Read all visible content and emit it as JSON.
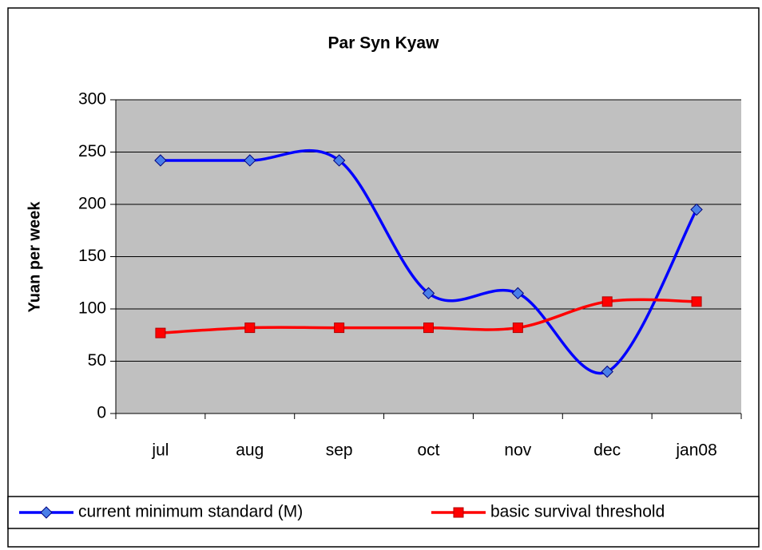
{
  "chart_data": {
    "type": "line",
    "title": "Par Syn Kyaw",
    "y_label": "Yuan per week",
    "categories": [
      "jul",
      "aug",
      "sep",
      "oct",
      "nov",
      "dec",
      "jan08"
    ],
    "series": [
      {
        "name": "current minimum standard (M)",
        "color": "#0000ff",
        "marker": "diamond",
        "values": [
          242,
          242,
          242,
          115,
          115,
          40,
          195
        ]
      },
      {
        "name": "basic survival threshold",
        "color": "#ff0000",
        "marker": "square",
        "values": [
          77,
          82,
          82,
          82,
          82,
          107,
          107
        ]
      }
    ],
    "ylim": [
      0,
      300
    ],
    "yticks": [
      0,
      50,
      100,
      150,
      200,
      250,
      300
    ],
    "grid": true,
    "smooth": true,
    "legend": "bottom"
  }
}
